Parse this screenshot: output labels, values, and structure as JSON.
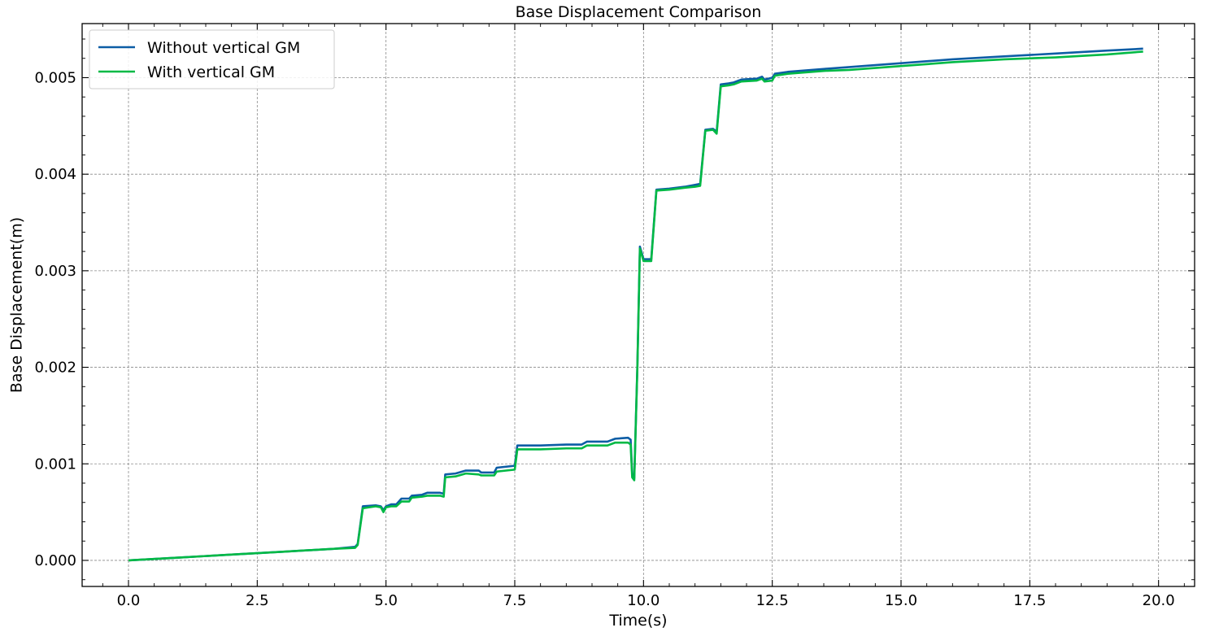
{
  "chart_data": {
    "type": "line",
    "title": "Base Displacement Comparison",
    "xlabel": "Time(s)",
    "ylabel": "Base Displacement(m)",
    "xlim": [
      -0.9,
      20.7
    ],
    "ylim": [
      -0.00027,
      0.00556
    ],
    "xticks": [
      0.0,
      2.5,
      5.0,
      7.5,
      10.0,
      12.5,
      15.0,
      17.5,
      20.0
    ],
    "xtick_labels": [
      "0.0",
      "2.5",
      "5.0",
      "7.5",
      "10.0",
      "12.5",
      "15.0",
      "17.5",
      "20.0"
    ],
    "yticks": [
      0.0,
      0.001,
      0.002,
      0.003,
      0.004,
      0.005
    ],
    "ytick_labels": [
      "0.000",
      "0.001",
      "0.002",
      "0.003",
      "0.004",
      "0.005"
    ],
    "grid": true,
    "legend_position": "top-left",
    "series": [
      {
        "name": "Without vertical GM",
        "color": "#0C5DA5",
        "points": [
          [
            0.0,
            0.0
          ],
          [
            1.0,
            3e-05
          ],
          [
            2.0,
            6e-05
          ],
          [
            3.0,
            9e-05
          ],
          [
            4.0,
            0.00012
          ],
          [
            4.4,
            0.00014
          ],
          [
            4.45,
            0.00017
          ],
          [
            4.55,
            0.00056
          ],
          [
            4.8,
            0.00057
          ],
          [
            4.9,
            0.00056
          ],
          [
            4.95,
            0.00052
          ],
          [
            5.0,
            0.00056
          ],
          [
            5.1,
            0.00058
          ],
          [
            5.2,
            0.00058
          ],
          [
            5.3,
            0.00064
          ],
          [
            5.45,
            0.00064
          ],
          [
            5.5,
            0.00067
          ],
          [
            5.7,
            0.00068
          ],
          [
            5.8,
            0.0007
          ],
          [
            6.05,
            0.0007
          ],
          [
            6.12,
            0.00069
          ],
          [
            6.15,
            0.00089
          ],
          [
            6.35,
            0.0009
          ],
          [
            6.55,
            0.00093
          ],
          [
            6.8,
            0.00093
          ],
          [
            6.85,
            0.00091
          ],
          [
            7.1,
            0.00091
          ],
          [
            7.15,
            0.00096
          ],
          [
            7.5,
            0.00098
          ],
          [
            7.55,
            0.00119
          ],
          [
            7.7,
            0.00119
          ],
          [
            8.0,
            0.00119
          ],
          [
            8.5,
            0.0012
          ],
          [
            8.8,
            0.0012
          ],
          [
            8.9,
            0.00123
          ],
          [
            9.3,
            0.00123
          ],
          [
            9.45,
            0.00126
          ],
          [
            9.7,
            0.00127
          ],
          [
            9.75,
            0.00125
          ],
          [
            9.78,
            0.0009
          ],
          [
            9.82,
            0.00085
          ],
          [
            9.88,
            0.002
          ],
          [
            9.93,
            0.00325
          ],
          [
            10.0,
            0.00312
          ],
          [
            10.15,
            0.00312
          ],
          [
            10.25,
            0.00384
          ],
          [
            10.5,
            0.00385
          ],
          [
            10.8,
            0.00387
          ],
          [
            11.0,
            0.00389
          ],
          [
            11.1,
            0.0039
          ],
          [
            11.2,
            0.00446
          ],
          [
            11.35,
            0.00447
          ],
          [
            11.42,
            0.00444
          ],
          [
            11.5,
            0.00493
          ],
          [
            11.65,
            0.00494
          ],
          [
            11.75,
            0.00495
          ],
          [
            11.9,
            0.00498
          ],
          [
            12.2,
            0.00499
          ],
          [
            12.3,
            0.00501
          ],
          [
            12.35,
            0.00498
          ],
          [
            12.5,
            0.005
          ],
          [
            12.55,
            0.00504
          ],
          [
            12.8,
            0.00506
          ],
          [
            13.5,
            0.00509
          ],
          [
            14.0,
            0.00511
          ],
          [
            15.0,
            0.00515
          ],
          [
            16.0,
            0.00519
          ],
          [
            17.0,
            0.00522
          ],
          [
            18.0,
            0.00525
          ],
          [
            19.0,
            0.00528
          ],
          [
            19.7,
            0.0053
          ]
        ]
      },
      {
        "name": "With vertical GM",
        "color": "#00B945",
        "points": [
          [
            0.0,
            0.0
          ],
          [
            1.0,
            3e-05
          ],
          [
            2.0,
            6e-05
          ],
          [
            3.0,
            9e-05
          ],
          [
            4.0,
            0.00012
          ],
          [
            4.4,
            0.00013
          ],
          [
            4.45,
            0.00016
          ],
          [
            4.55,
            0.00054
          ],
          [
            4.8,
            0.00056
          ],
          [
            4.9,
            0.00055
          ],
          [
            4.95,
            0.0005
          ],
          [
            5.0,
            0.00055
          ],
          [
            5.1,
            0.00056
          ],
          [
            5.2,
            0.00056
          ],
          [
            5.3,
            0.00061
          ],
          [
            5.45,
            0.00061
          ],
          [
            5.5,
            0.00065
          ],
          [
            5.7,
            0.00066
          ],
          [
            5.8,
            0.00067
          ],
          [
            6.05,
            0.00067
          ],
          [
            6.12,
            0.00066
          ],
          [
            6.15,
            0.00086
          ],
          [
            6.35,
            0.00087
          ],
          [
            6.55,
            0.0009
          ],
          [
            6.8,
            0.00089
          ],
          [
            6.85,
            0.00088
          ],
          [
            7.1,
            0.00088
          ],
          [
            7.15,
            0.00092
          ],
          [
            7.5,
            0.00094
          ],
          [
            7.55,
            0.00115
          ],
          [
            7.7,
            0.00115
          ],
          [
            8.0,
            0.00115
          ],
          [
            8.5,
            0.00116
          ],
          [
            8.8,
            0.00116
          ],
          [
            8.9,
            0.00119
          ],
          [
            9.3,
            0.00119
          ],
          [
            9.45,
            0.00122
          ],
          [
            9.7,
            0.00122
          ],
          [
            9.75,
            0.0012
          ],
          [
            9.78,
            0.00086
          ],
          [
            9.82,
            0.00083
          ],
          [
            9.88,
            0.00198
          ],
          [
            9.93,
            0.00323
          ],
          [
            10.0,
            0.0031
          ],
          [
            10.15,
            0.0031
          ],
          [
            10.25,
            0.00383
          ],
          [
            10.5,
            0.00384
          ],
          [
            10.8,
            0.00386
          ],
          [
            11.0,
            0.00387
          ],
          [
            11.1,
            0.00388
          ],
          [
            11.2,
            0.00445
          ],
          [
            11.35,
            0.00446
          ],
          [
            11.42,
            0.00442
          ],
          [
            11.5,
            0.00491
          ],
          [
            11.65,
            0.00492
          ],
          [
            11.75,
            0.00493
          ],
          [
            11.9,
            0.00496
          ],
          [
            12.2,
            0.00497
          ],
          [
            12.3,
            0.00499
          ],
          [
            12.35,
            0.00496
          ],
          [
            12.5,
            0.00497
          ],
          [
            12.55,
            0.00502
          ],
          [
            12.8,
            0.00504
          ],
          [
            13.5,
            0.00507
          ],
          [
            14.0,
            0.00508
          ],
          [
            15.0,
            0.00512
          ],
          [
            16.0,
            0.00516
          ],
          [
            17.0,
            0.00519
          ],
          [
            18.0,
            0.00521
          ],
          [
            19.0,
            0.00524
          ],
          [
            19.7,
            0.00527
          ]
        ]
      }
    ]
  }
}
